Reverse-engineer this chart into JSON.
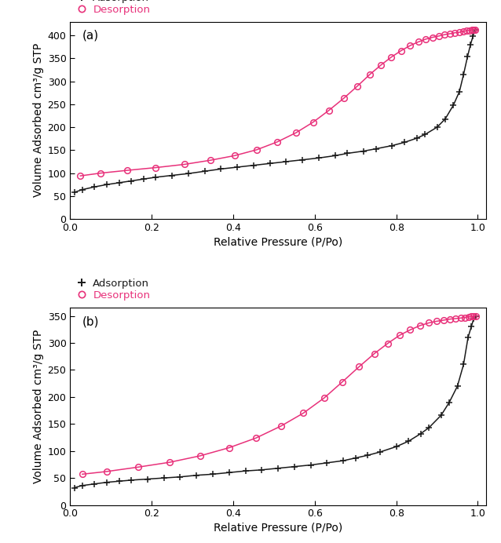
{
  "plot_a": {
    "label": "(a)",
    "adsorption_x": [
      0.01,
      0.03,
      0.06,
      0.09,
      0.12,
      0.15,
      0.18,
      0.21,
      0.25,
      0.29,
      0.33,
      0.37,
      0.41,
      0.45,
      0.49,
      0.53,
      0.57,
      0.61,
      0.65,
      0.68,
      0.72,
      0.75,
      0.79,
      0.82,
      0.85,
      0.87,
      0.9,
      0.92,
      0.94,
      0.955,
      0.965,
      0.975,
      0.982,
      0.988,
      0.993
    ],
    "adsorption_y": [
      58,
      64,
      70,
      75,
      79,
      83,
      87,
      91,
      95,
      99,
      104,
      109,
      113,
      117,
      121,
      125,
      129,
      133,
      138,
      143,
      148,
      153,
      160,
      167,
      176,
      184,
      200,
      218,
      248,
      278,
      315,
      355,
      380,
      398,
      413
    ],
    "desorption_x": [
      0.993,
      0.99,
      0.985,
      0.979,
      0.972,
      0.964,
      0.955,
      0.944,
      0.932,
      0.919,
      0.905,
      0.889,
      0.872,
      0.854,
      0.834,
      0.812,
      0.788,
      0.763,
      0.735,
      0.705,
      0.671,
      0.635,
      0.596,
      0.554,
      0.508,
      0.458,
      0.403,
      0.344,
      0.28,
      0.21,
      0.14,
      0.075,
      0.025
    ],
    "desorption_y": [
      413,
      413,
      412,
      411,
      410,
      409,
      407,
      406,
      404,
      402,
      399,
      396,
      392,
      386,
      378,
      367,
      353,
      336,
      315,
      290,
      263,
      237,
      211,
      188,
      168,
      151,
      138,
      128,
      119,
      112,
      106,
      100,
      94
    ],
    "ylim": [
      0,
      430
    ],
    "yticks": [
      0,
      50,
      100,
      150,
      200,
      250,
      300,
      350,
      400
    ],
    "xlim": [
      0.0,
      1.02
    ],
    "xticks": [
      0.0,
      0.2,
      0.4,
      0.6,
      0.8,
      1.0
    ]
  },
  "plot_b": {
    "label": "(b)",
    "adsorption_x": [
      0.01,
      0.03,
      0.06,
      0.09,
      0.12,
      0.15,
      0.19,
      0.23,
      0.27,
      0.31,
      0.35,
      0.39,
      0.43,
      0.47,
      0.51,
      0.55,
      0.59,
      0.63,
      0.67,
      0.7,
      0.73,
      0.76,
      0.8,
      0.83,
      0.86,
      0.88,
      0.91,
      0.93,
      0.95,
      0.965,
      0.976,
      0.984,
      0.99,
      0.995
    ],
    "adsorption_y": [
      32,
      36,
      39,
      42,
      44,
      46,
      48,
      50,
      52,
      55,
      57,
      60,
      63,
      65,
      68,
      71,
      74,
      78,
      82,
      87,
      92,
      98,
      108,
      118,
      132,
      143,
      166,
      190,
      220,
      260,
      310,
      330,
      345,
      350
    ],
    "desorption_x": [
      0.995,
      0.99,
      0.984,
      0.977,
      0.968,
      0.958,
      0.946,
      0.932,
      0.916,
      0.899,
      0.88,
      0.858,
      0.834,
      0.808,
      0.779,
      0.746,
      0.709,
      0.668,
      0.623,
      0.572,
      0.517,
      0.456,
      0.39,
      0.319,
      0.244,
      0.166,
      0.09,
      0.03
    ],
    "desorption_y": [
      350,
      350,
      349,
      348,
      347,
      346,
      345,
      344,
      342,
      340,
      337,
      332,
      324,
      314,
      299,
      280,
      256,
      228,
      198,
      170,
      146,
      124,
      106,
      91,
      79,
      70,
      62,
      57
    ],
    "ylim": [
      0,
      365
    ],
    "yticks": [
      0,
      50,
      100,
      150,
      200,
      250,
      300,
      350
    ],
    "xlim": [
      0.0,
      1.02
    ],
    "xticks": [
      0.0,
      0.2,
      0.4,
      0.6,
      0.8,
      1.0
    ]
  },
  "adsorption_color": "#1a1a1a",
  "desorption_color": "#e8317a",
  "ylabel": "Volume Adsorbed cm³/g STP",
  "xlabel": "Relative Pressure (P/Po)",
  "adsorption_label": "Adsorption",
  "desorption_label": "Desorption",
  "background_color": "#ffffff"
}
